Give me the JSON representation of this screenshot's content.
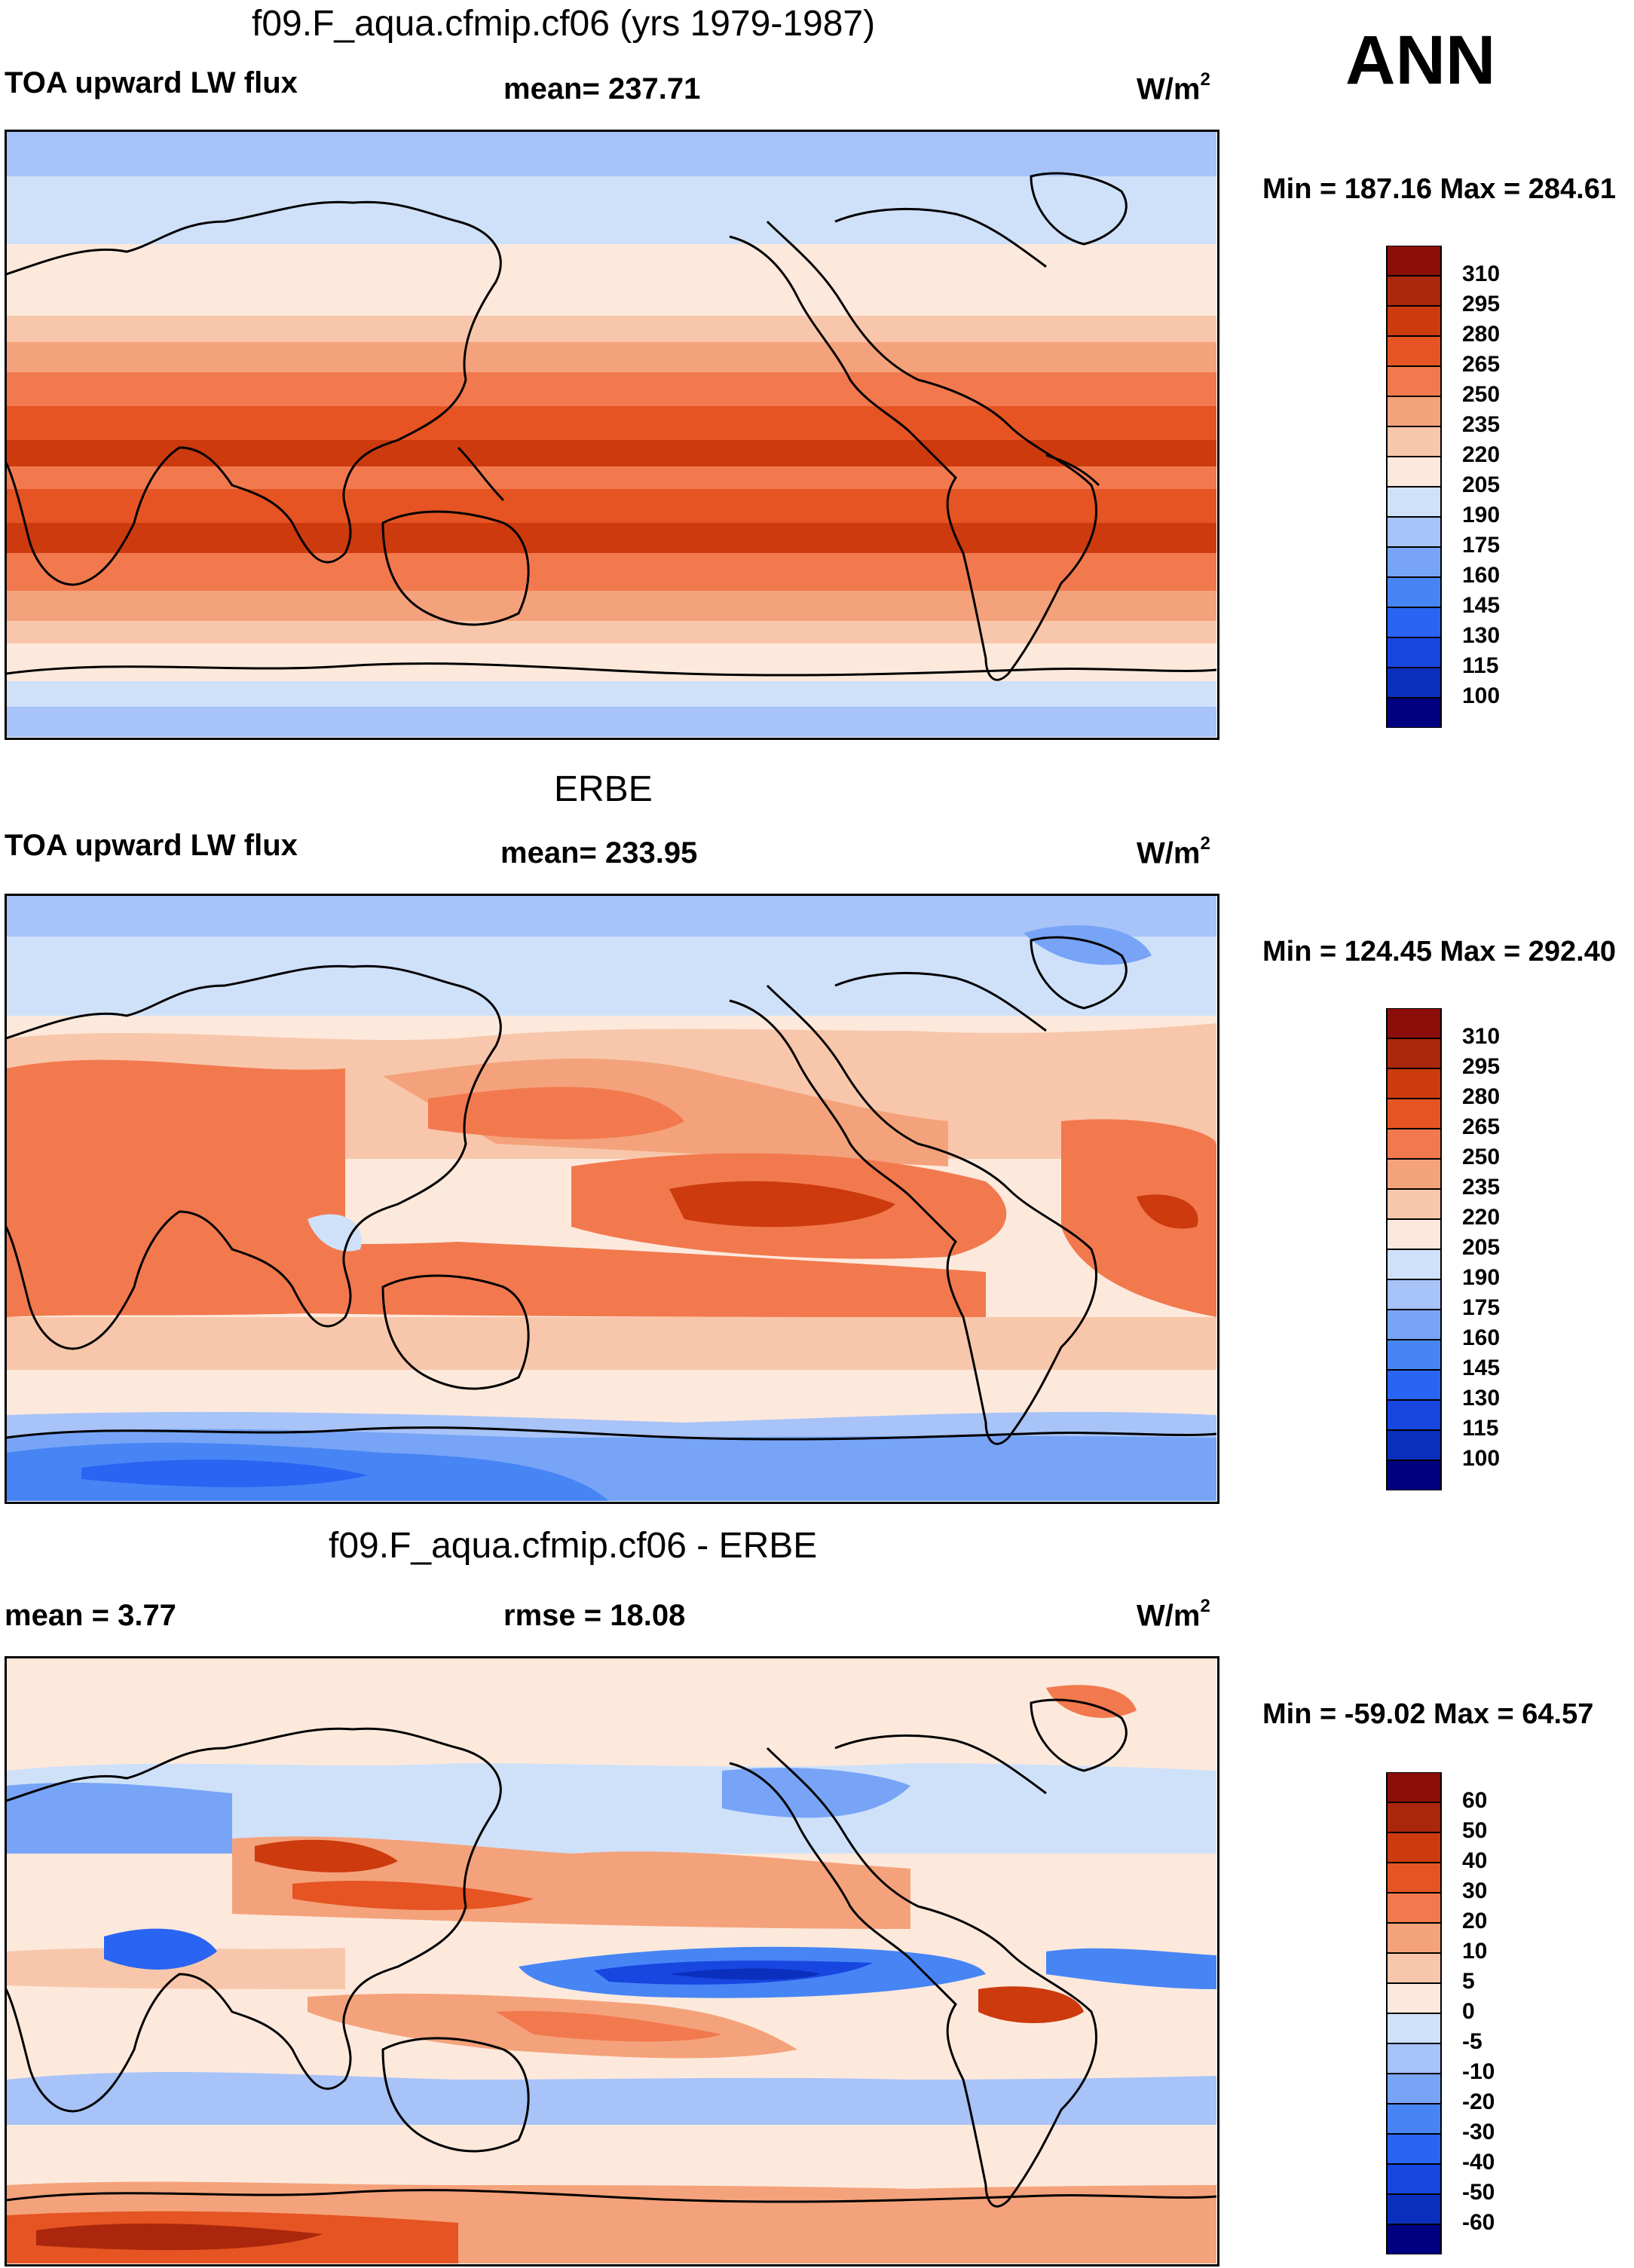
{
  "season": "ANN",
  "palettes": {
    "abs": [
      "#000080",
      "#0b2fbd",
      "#1746e0",
      "#2a64f2",
      "#4785f5",
      "#77a4f6",
      "#a7c3f8",
      "#cfe1f9",
      "#fde9dc",
      "#f8c7ab",
      "#f4a27b",
      "#f2794e",
      "#e55422",
      "#cc3a0e",
      "#aa260c",
      "#8b0e08"
    ],
    "diff": [
      "#000080",
      "#0b2fbd",
      "#1746e0",
      "#2a64f2",
      "#4785f5",
      "#77a4f6",
      "#a7c3f8",
      "#cfe1f9",
      "#fde9dc",
      "#f8c7ab",
      "#f4a27b",
      "#f2794e",
      "#e55422",
      "#cc3a0e",
      "#aa260c",
      "#8b0e08"
    ]
  },
  "panels": [
    {
      "title": "f09.F_aqua.cfmip.cf06 (yrs 1979-1987)",
      "left_label": "TOA upward LW flux",
      "center_label": "mean= 237.71",
      "units": "W/m",
      "units_sup": "2",
      "minmax": "Min = 187.16 Max = 284.61",
      "colorbar_ticks": [
        "310",
        "295",
        "280",
        "265",
        "250",
        "235",
        "220",
        "205",
        "190",
        "175",
        "160",
        "145",
        "130",
        "115",
        "100"
      ]
    },
    {
      "title": "ERBE",
      "left_label": "TOA upward LW flux",
      "center_label": "mean= 233.95",
      "units": "W/m",
      "units_sup": "2",
      "minmax": "Min = 124.45 Max = 292.40",
      "colorbar_ticks": [
        "310",
        "295",
        "280",
        "265",
        "250",
        "235",
        "220",
        "205",
        "190",
        "175",
        "160",
        "145",
        "130",
        "115",
        "100"
      ]
    },
    {
      "title": "f09.F_aqua.cfmip.cf06 - ERBE",
      "left_label": "mean =   3.77",
      "center_label": "rmse =  18.08",
      "units": "W/m",
      "units_sup": "2",
      "minmax": "Min = -59.02 Max =  64.57",
      "colorbar_ticks": [
        "60",
        "50",
        "40",
        "30",
        "20",
        "10",
        "5",
        "0",
        "-5",
        "-10",
        "-20",
        "-30",
        "-40",
        "-50",
        "-60"
      ]
    }
  ]
}
